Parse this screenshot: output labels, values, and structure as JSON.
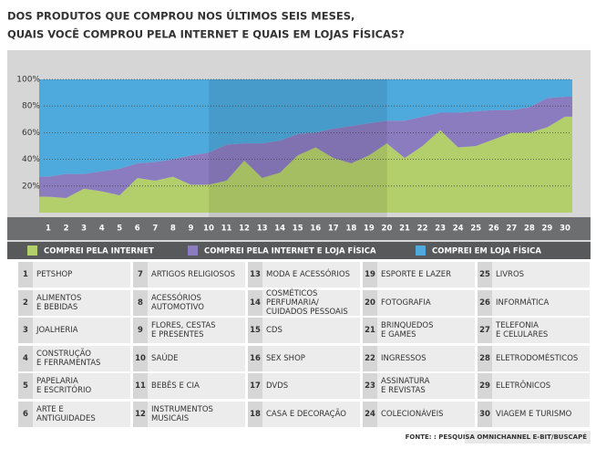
{
  "chart_data": {
    "type": "stacked_area",
    "title": [
      "DOS PRODUTOS QUE COMPROU NOS ÚLTIMOS SEIS MESES,",
      "QUAIS VOCÊ COMPROU PELA INTERNET E QUAIS EM LOJAS FÍSICAS?"
    ],
    "categories": [
      "1",
      "2",
      "3",
      "4",
      "5",
      "6",
      "7",
      "8",
      "9",
      "10",
      "11",
      "12",
      "13",
      "14",
      "15",
      "16",
      "17",
      "18",
      "19",
      "20",
      "21",
      "22",
      "23",
      "24",
      "25",
      "26",
      "27",
      "28",
      "29",
      "30"
    ],
    "category_names": [
      "PETSHOP",
      "ALIMENTOS\nE BEBIDAS",
      "JOALHERIA",
      "CONSTRUÇÃO\nE FERRAMENTAS",
      "PAPELARIA\nE ESCRITÓRIO",
      "ARTE E\nANTIGUIDADES",
      "ARTIGOS RELIGIOSOS",
      "ACESSÓRIOS\nAUTOMOTIVO",
      "FLORES, CESTAS\nE PRESENTES",
      "SAÚDE",
      "BEBÊS E CIA",
      "INSTRUMENTOS\nMUSICAIS",
      "MODA E ACESSÓRIOS",
      "COSMÉTICOS\nPERFUMARIA/\nCUIDADOS PESSOAIS",
      "CDS",
      "SEX SHOP",
      "DVDS",
      "CASA E DECORAÇÃO",
      "ESPORTE E LAZER",
      "FOTOGRAFIA",
      "BRINQUEDOS\nE GAMES",
      "INGRESSOS",
      "ASSINATURA\nE REVISTAS",
      "COLECIONÁVEIS",
      "LIVROS",
      "INFORMÁTICA",
      "TELEFONIA\nE CELULARES",
      "ELETRODOMÉSTICOS",
      "ELETRÔNICOS",
      "VIAGEM E TURISMO"
    ],
    "series": [
      {
        "name": "COMPREI PELA INTERNET",
        "color": "#b3cf6b",
        "values": [
          12,
          11,
          18,
          16,
          13,
          26,
          24,
          27,
          21,
          21,
          24,
          39,
          26,
          30,
          43,
          49,
          41,
          37,
          43,
          52,
          41,
          50,
          62,
          49,
          50,
          55,
          60,
          60,
          64,
          72
        ]
      },
      {
        "name": "COMPREI PELA INTERNET E LOJA FÍSICA",
        "color": "#8b7cc0",
        "values": [
          15,
          18,
          11,
          15,
          20,
          11,
          14,
          13,
          22,
          24,
          27,
          13,
          26,
          24,
          16,
          11,
          22,
          28,
          24,
          17,
          28,
          22,
          13,
          26,
          26,
          22,
          17,
          19,
          22,
          15
        ]
      },
      {
        "name": "COMPREI EM LOJA FÍSICA",
        "color": "#4ea9dc",
        "values": [
          73,
          71,
          71,
          69,
          67,
          63,
          62,
          60,
          57,
          55,
          49,
          48,
          48,
          46,
          41,
          40,
          37,
          35,
          33,
          31,
          31,
          28,
          25,
          25,
          24,
          23,
          23,
          21,
          14,
          13
        ]
      }
    ],
    "ylim": [
      0,
      100
    ],
    "yticks": [
      {
        "value": 20,
        "label": "20%"
      },
      {
        "value": 40,
        "label": "40%"
      },
      {
        "value": 60,
        "label": "60%"
      },
      {
        "value": 80,
        "label": "80%"
      },
      {
        "value": 100,
        "label": "100%"
      }
    ],
    "grid": true,
    "source": "FONTE: : PESQUISA OMNICHANNEL E-BIT/BUSCAPÉ"
  }
}
